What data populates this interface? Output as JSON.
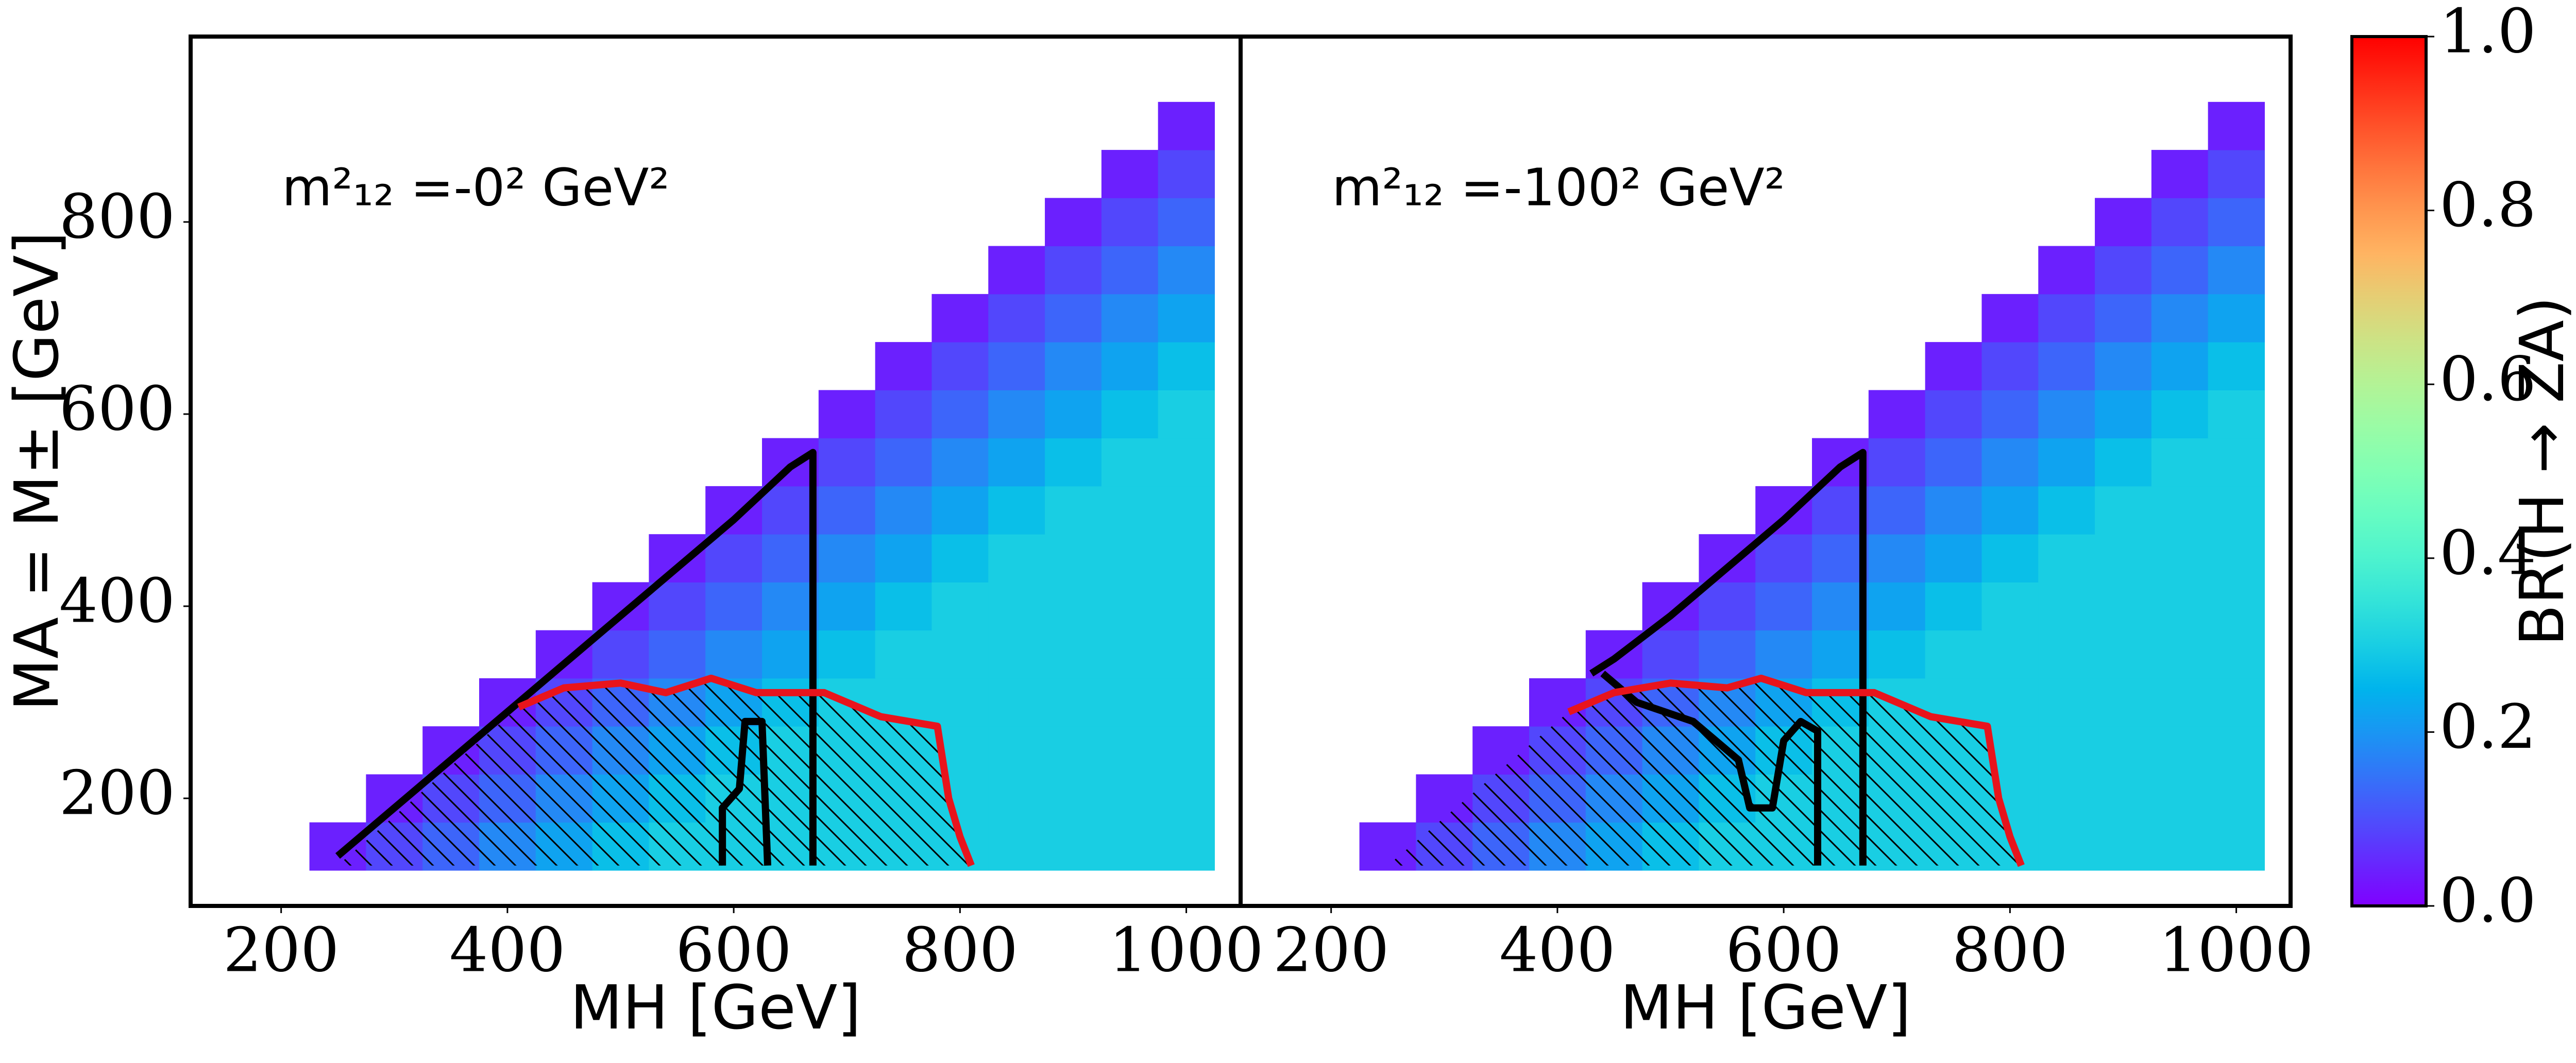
{
  "chart_data": [
    {
      "type": "heatmap",
      "annotation": "m²₁₂ =-0² GeV²",
      "xlabel": "MH [GeV]",
      "ylabel": "MA = M± [GeV]",
      "xlim": [
        120,
        1048
      ],
      "ylim": [
        88,
        993
      ],
      "xticks": [
        200,
        400,
        600,
        800,
        1000
      ],
      "yticks": [
        200,
        400,
        600,
        800
      ],
      "x": [
        250,
        300,
        350,
        400,
        450,
        500,
        550,
        600,
        650,
        700,
        750,
        800,
        850,
        900,
        950,
        1000
      ],
      "y": [
        150,
        200,
        250,
        300,
        350,
        400,
        450,
        500,
        550,
        600,
        650,
        700,
        750,
        800,
        850,
        900
      ],
      "z": [
        [
          0.04,
          0.09,
          0.13,
          0.18,
          0.22,
          0.27,
          0.3,
          0.3,
          0.3,
          0.3,
          0.3,
          0.3,
          0.3,
          0.3,
          0.3,
          0.3
        ],
        [
          null,
          0.04,
          0.09,
          0.13,
          0.18,
          0.22,
          0.27,
          0.3,
          0.3,
          0.3,
          0.3,
          0.3,
          0.3,
          0.3,
          0.3,
          0.3
        ],
        [
          null,
          null,
          0.04,
          0.09,
          0.13,
          0.18,
          0.22,
          0.27,
          0.3,
          0.3,
          0.3,
          0.3,
          0.3,
          0.3,
          0.3,
          0.3
        ],
        [
          null,
          null,
          null,
          0.04,
          0.09,
          0.13,
          0.18,
          0.22,
          0.27,
          0.3,
          0.3,
          0.3,
          0.3,
          0.3,
          0.3,
          0.3
        ],
        [
          null,
          null,
          null,
          null,
          0.04,
          0.09,
          0.13,
          0.18,
          0.22,
          0.27,
          0.3,
          0.3,
          0.3,
          0.3,
          0.3,
          0.3
        ],
        [
          null,
          null,
          null,
          null,
          null,
          0.04,
          0.09,
          0.13,
          0.18,
          0.22,
          0.27,
          0.3,
          0.3,
          0.3,
          0.3,
          0.3
        ],
        [
          null,
          null,
          null,
          null,
          null,
          null,
          0.04,
          0.09,
          0.13,
          0.18,
          0.22,
          0.27,
          0.3,
          0.3,
          0.3,
          0.3
        ],
        [
          null,
          null,
          null,
          null,
          null,
          null,
          null,
          0.04,
          0.09,
          0.13,
          0.18,
          0.22,
          0.27,
          0.3,
          0.3,
          0.3
        ],
        [
          null,
          null,
          null,
          null,
          null,
          null,
          null,
          null,
          0.04,
          0.09,
          0.13,
          0.18,
          0.22,
          0.27,
          0.3,
          0.3
        ],
        [
          null,
          null,
          null,
          null,
          null,
          null,
          null,
          null,
          null,
          0.04,
          0.09,
          0.13,
          0.18,
          0.22,
          0.27,
          0.3
        ],
        [
          null,
          null,
          null,
          null,
          null,
          null,
          null,
          null,
          null,
          null,
          0.04,
          0.09,
          0.13,
          0.18,
          0.22,
          0.27
        ],
        [
          null,
          null,
          null,
          null,
          null,
          null,
          null,
          null,
          null,
          null,
          null,
          0.04,
          0.09,
          0.13,
          0.18,
          0.22
        ],
        [
          null,
          null,
          null,
          null,
          null,
          null,
          null,
          null,
          null,
          null,
          null,
          null,
          0.04,
          0.09,
          0.13,
          0.18
        ],
        [
          null,
          null,
          null,
          null,
          null,
          null,
          null,
          null,
          null,
          null,
          null,
          null,
          null,
          0.04,
          0.09,
          0.13
        ],
        [
          null,
          null,
          null,
          null,
          null,
          null,
          null,
          null,
          null,
          null,
          null,
          null,
          null,
          null,
          0.04,
          0.09
        ],
        [
          null,
          null,
          null,
          null,
          null,
          null,
          null,
          null,
          null,
          null,
          null,
          null,
          null,
          null,
          null,
          0.04
        ]
      ],
      "contours": [
        {
          "color": "#000000",
          "hatch": false,
          "x": [
            250,
            300,
            350,
            400,
            450,
            500,
            550,
            600,
            650,
            670,
            670
          ],
          "y": [
            140,
            190,
            240,
            290,
            340,
            390,
            440,
            490,
            545,
            560,
            130
          ]
        },
        {
          "color": "#000000",
          "hatch": false,
          "x": [
            590,
            590,
            605,
            610,
            625,
            630
          ],
          "y": [
            130,
            190,
            210,
            280,
            280,
            130
          ]
        },
        {
          "color": "#e8141c",
          "hatch": true,
          "x": [
            410,
            450,
            500,
            540,
            580,
            620,
            680,
            730,
            780,
            790,
            800,
            810
          ],
          "y": [
            295,
            315,
            320,
            310,
            325,
            310,
            310,
            285,
            275,
            200,
            160,
            130
          ]
        }
      ]
    },
    {
      "type": "heatmap",
      "annotation": "m²₁₂ =-100² GeV²",
      "xlabel": "MH [GeV]",
      "xlim": [
        120,
        1048
      ],
      "ylim": [
        88,
        993
      ],
      "xticks": [
        200,
        400,
        600,
        800,
        1000
      ],
      "x": [
        250,
        300,
        350,
        400,
        450,
        500,
        550,
        600,
        650,
        700,
        750,
        800,
        850,
        900,
        950,
        1000
      ],
      "y": [
        150,
        200,
        250,
        300,
        350,
        400,
        450,
        500,
        550,
        600,
        650,
        700,
        750,
        800,
        850,
        900
      ],
      "z": [
        [
          0.04,
          0.09,
          0.13,
          0.18,
          0.22,
          0.27,
          0.3,
          0.3,
          0.3,
          0.3,
          0.3,
          0.3,
          0.3,
          0.3,
          0.3,
          0.3
        ],
        [
          null,
          0.04,
          0.09,
          0.13,
          0.18,
          0.22,
          0.27,
          0.3,
          0.3,
          0.3,
          0.3,
          0.3,
          0.3,
          0.3,
          0.3,
          0.3
        ],
        [
          null,
          null,
          0.04,
          0.09,
          0.13,
          0.18,
          0.22,
          0.27,
          0.3,
          0.3,
          0.3,
          0.3,
          0.3,
          0.3,
          0.3,
          0.3
        ],
        [
          null,
          null,
          null,
          0.04,
          0.09,
          0.13,
          0.18,
          0.22,
          0.27,
          0.3,
          0.3,
          0.3,
          0.3,
          0.3,
          0.3,
          0.3
        ],
        [
          null,
          null,
          null,
          null,
          0.04,
          0.09,
          0.13,
          0.18,
          0.22,
          0.27,
          0.3,
          0.3,
          0.3,
          0.3,
          0.3,
          0.3
        ],
        [
          null,
          null,
          null,
          null,
          null,
          0.04,
          0.09,
          0.13,
          0.18,
          0.22,
          0.27,
          0.3,
          0.3,
          0.3,
          0.3,
          0.3
        ],
        [
          null,
          null,
          null,
          null,
          null,
          null,
          0.04,
          0.09,
          0.13,
          0.18,
          0.22,
          0.27,
          0.3,
          0.3,
          0.3,
          0.3
        ],
        [
          null,
          null,
          null,
          null,
          null,
          null,
          null,
          0.04,
          0.09,
          0.13,
          0.18,
          0.22,
          0.27,
          0.3,
          0.3,
          0.3
        ],
        [
          null,
          null,
          null,
          null,
          null,
          null,
          null,
          null,
          0.04,
          0.09,
          0.13,
          0.18,
          0.22,
          0.27,
          0.3,
          0.3
        ],
        [
          null,
          null,
          null,
          null,
          null,
          null,
          null,
          null,
          null,
          0.04,
          0.09,
          0.13,
          0.18,
          0.22,
          0.27,
          0.3
        ],
        [
          null,
          null,
          null,
          null,
          null,
          null,
          null,
          null,
          null,
          null,
          0.04,
          0.09,
          0.13,
          0.18,
          0.22,
          0.27
        ],
        [
          null,
          null,
          null,
          null,
          null,
          null,
          null,
          null,
          null,
          null,
          null,
          0.04,
          0.09,
          0.13,
          0.18,
          0.22
        ],
        [
          null,
          null,
          null,
          null,
          null,
          null,
          null,
          null,
          null,
          null,
          null,
          null,
          0.04,
          0.09,
          0.13,
          0.18
        ],
        [
          null,
          null,
          null,
          null,
          null,
          null,
          null,
          null,
          null,
          null,
          null,
          null,
          null,
          0.04,
          0.09,
          0.13
        ],
        [
          null,
          null,
          null,
          null,
          null,
          null,
          null,
          null,
          null,
          null,
          null,
          null,
          null,
          null,
          0.04,
          0.09
        ],
        [
          null,
          null,
          null,
          null,
          null,
          null,
          null,
          null,
          null,
          null,
          null,
          null,
          null,
          null,
          null,
          0.04
        ]
      ],
      "contours": [
        {
          "color": "#000000",
          "hatch": false,
          "x": [
            430,
            450,
            500,
            550,
            600,
            650,
            670,
            670
          ],
          "y": [
            330,
            345,
            390,
            440,
            490,
            545,
            560,
            130
          ]
        },
        {
          "color": "#000000",
          "hatch": false,
          "x": [
            440,
            470,
            520,
            560,
            570,
            590,
            600,
            615,
            630,
            630
          ],
          "y": [
            330,
            300,
            280,
            240,
            190,
            190,
            260,
            280,
            270,
            130
          ]
        },
        {
          "color": "#e8141c",
          "hatch": true,
          "x": [
            410,
            450,
            500,
            550,
            580,
            620,
            680,
            730,
            780,
            790,
            800,
            810
          ],
          "y": [
            290,
            310,
            320,
            315,
            325,
            310,
            310,
            285,
            275,
            200,
            160,
            130
          ]
        }
      ]
    }
  ],
  "colorbar": {
    "colormap": "rainbow",
    "label": "BR(H → ZA)",
    "clim": [
      0,
      1
    ],
    "ticks": [
      {
        "value": 0,
        "label": "0.0"
      },
      0.2,
      0.4,
      0.6,
      0.8,
      {
        "value": 1,
        "label": "1.0"
      }
    ]
  }
}
